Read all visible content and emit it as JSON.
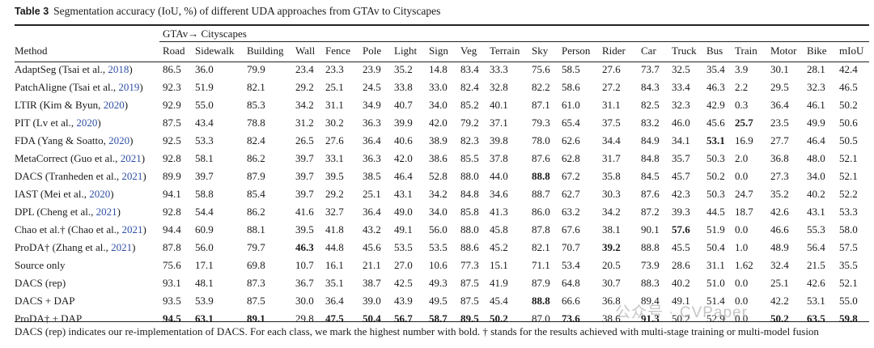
{
  "caption": {
    "label": "Table 3",
    "text": "Segmentation accuracy (IoU, %) of different UDA approaches from GTAv to Cityscapes"
  },
  "group_header": "GTAv→ Cityscapes",
  "method_header": "Method",
  "columns": [
    "Road",
    "Sidewalk",
    "Building",
    "Wall",
    "Fence",
    "Pole",
    "Light",
    "Sign",
    "Veg",
    "Terrain",
    "Sky",
    "Person",
    "Rider",
    "Car",
    "Truck",
    "Bus",
    "Train",
    "Motor",
    "Bike",
    "mIoU"
  ],
  "rows": [
    {
      "name": "AdaptSeg (",
      "cite_text": "Tsai et al., ",
      "cite_year": "2018",
      "tail": ")",
      "values": [
        "86.5",
        "36.0",
        "79.9",
        "23.4",
        "23.3",
        "23.9",
        "35.2",
        "14.8",
        "83.4",
        "33.3",
        "75.6",
        "58.5",
        "27.6",
        "73.7",
        "32.5",
        "35.4",
        "3.9",
        "30.1",
        "28.1",
        "42.4"
      ],
      "bold": []
    },
    {
      "name": "PatchAligne (",
      "cite_text": "Tsai et al., ",
      "cite_year": "2019",
      "tail": ")",
      "values": [
        "92.3",
        "51.9",
        "82.1",
        "29.2",
        "25.1",
        "24.5",
        "33.8",
        "33.0",
        "82.4",
        "32.8",
        "82.2",
        "58.6",
        "27.2",
        "84.3",
        "33.4",
        "46.3",
        "2.2",
        "29.5",
        "32.3",
        "46.5"
      ],
      "bold": []
    },
    {
      "name": "LTIR (",
      "cite_text": "Kim & Byun, ",
      "cite_year": "2020",
      "tail": ")",
      "values": [
        "92.9",
        "55.0",
        "85.3",
        "34.2",
        "31.1",
        "34.9",
        "40.7",
        "34.0",
        "85.2",
        "40.1",
        "87.1",
        "61.0",
        "31.1",
        "82.5",
        "32.3",
        "42.9",
        "0.3",
        "36.4",
        "46.1",
        "50.2"
      ],
      "bold": []
    },
    {
      "name": "PIT (",
      "cite_text": "Lv et al., ",
      "cite_year": "2020",
      "tail": ")",
      "values": [
        "87.5",
        "43.4",
        "78.8",
        "31.2",
        "30.2",
        "36.3",
        "39.9",
        "42.0",
        "79.2",
        "37.1",
        "79.3",
        "65.4",
        "37.5",
        "83.2",
        "46.0",
        "45.6",
        "25.7",
        "23.5",
        "49.9",
        "50.6"
      ],
      "bold": [
        16
      ]
    },
    {
      "name": "FDA (",
      "cite_text": "Yang & Soatto, ",
      "cite_year": "2020",
      "tail": ")",
      "values": [
        "92.5",
        "53.3",
        "82.4",
        "26.5",
        "27.6",
        "36.4",
        "40.6",
        "38.9",
        "82.3",
        "39.8",
        "78.0",
        "62.6",
        "34.4",
        "84.9",
        "34.1",
        "53.1",
        "16.9",
        "27.7",
        "46.4",
        "50.5"
      ],
      "bold": [
        15
      ]
    },
    {
      "name": "MetaCorrect (",
      "cite_text": "Guo et al., ",
      "cite_year": "2021",
      "tail": ")",
      "values": [
        "92.8",
        "58.1",
        "86.2",
        "39.7",
        "33.1",
        "36.3",
        "42.0",
        "38.6",
        "85.5",
        "37.8",
        "87.6",
        "62.8",
        "31.7",
        "84.8",
        "35.7",
        "50.3",
        "2.0",
        "36.8",
        "48.0",
        "52.1"
      ],
      "bold": []
    },
    {
      "name": "DACS (",
      "cite_text": "Tranheden et al., ",
      "cite_year": "2021",
      "tail": ")",
      "values": [
        "89.9",
        "39.7",
        "87.9",
        "39.7",
        "39.5",
        "38.5",
        "46.4",
        "52.8",
        "88.0",
        "44.0",
        "88.8",
        "67.2",
        "35.8",
        "84.5",
        "45.7",
        "50.2",
        "0.0",
        "27.3",
        "34.0",
        "52.1"
      ],
      "bold": [
        10
      ]
    },
    {
      "name": "IAST (",
      "cite_text": "Mei et al., ",
      "cite_year": "2020",
      "tail": ")",
      "values": [
        "94.1",
        "58.8",
        "85.4",
        "39.7",
        "29.2",
        "25.1",
        "43.1",
        "34.2",
        "84.8",
        "34.6",
        "88.7",
        "62.7",
        "30.3",
        "87.6",
        "42.3",
        "50.3",
        "24.7",
        "35.2",
        "40.2",
        "52.2"
      ],
      "bold": []
    },
    {
      "name": "DPL (",
      "cite_text": "Cheng et al., ",
      "cite_year": "2021",
      "tail": ")",
      "values": [
        "92.8",
        "54.4",
        "86.2",
        "41.6",
        "32.7",
        "36.4",
        "49.0",
        "34.0",
        "85.8",
        "41.3",
        "86.0",
        "63.2",
        "34.2",
        "87.2",
        "39.3",
        "44.5",
        "18.7",
        "42.6",
        "43.1",
        "53.3"
      ],
      "bold": []
    },
    {
      "name": "Chao et al.† (",
      "cite_text": "Chao et al., ",
      "cite_year": "2021",
      "tail": ")",
      "values": [
        "94.4",
        "60.9",
        "88.1",
        "39.5",
        "41.8",
        "43.2",
        "49.1",
        "56.0",
        "88.0",
        "45.8",
        "87.8",
        "67.6",
        "38.1",
        "90.1",
        "57.6",
        "51.9",
        "0.0",
        "46.6",
        "55.3",
        "58.0"
      ],
      "bold": [
        14
      ]
    },
    {
      "name": "ProDA† (",
      "cite_text": "Zhang et al., ",
      "cite_year": "2021",
      "tail": ")",
      "values": [
        "87.8",
        "56.0",
        "79.7",
        "46.3",
        "44.8",
        "45.6",
        "53.5",
        "53.5",
        "88.6",
        "45.2",
        "82.1",
        "70.7",
        "39.2",
        "88.8",
        "45.5",
        "50.4",
        "1.0",
        "48.9",
        "56.4",
        "57.5"
      ],
      "bold": [
        3,
        12
      ]
    },
    {
      "name": "Source only",
      "cite_text": "",
      "cite_year": "",
      "tail": "",
      "values": [
        "75.6",
        "17.1",
        "69.8",
        "10.7",
        "16.1",
        "21.1",
        "27.0",
        "10.6",
        "77.3",
        "15.1",
        "71.1",
        "53.4",
        "20.5",
        "73.9",
        "28.6",
        "31.1",
        "1.62",
        "32.4",
        "21.5",
        "35.5"
      ],
      "bold": []
    },
    {
      "name": "DACS (rep)",
      "cite_text": "",
      "cite_year": "",
      "tail": "",
      "values": [
        "93.1",
        "48.1",
        "87.3",
        "36.7",
        "35.1",
        "38.7",
        "42.5",
        "49.3",
        "87.5",
        "41.9",
        "87.9",
        "64.8",
        "30.7",
        "88.3",
        "40.2",
        "51.0",
        "0.0",
        "25.1",
        "42.6",
        "52.1"
      ],
      "bold": []
    },
    {
      "name": "DACS + DAP",
      "cite_text": "",
      "cite_year": "",
      "tail": "",
      "values": [
        "93.5",
        "53.9",
        "87.5",
        "30.0",
        "36.4",
        "39.0",
        "43.9",
        "49.5",
        "87.5",
        "45.4",
        "88.8",
        "66.6",
        "36.8",
        "89.4",
        "49.1",
        "51.4",
        "0.0",
        "42.2",
        "53.1",
        "55.0"
      ],
      "bold": [
        10
      ]
    },
    {
      "name": "ProDA† + DAP",
      "cite_text": "",
      "cite_year": "",
      "tail": "",
      "values": [
        "94.5",
        "63.1",
        "89.1",
        "29.8",
        "47.5",
        "50.4",
        "56.7",
        "58.7",
        "89.5",
        "50.2",
        "87.0",
        "73.6",
        "38.6",
        "91.3",
        "50.2",
        "52.9",
        "0.0",
        "50.2",
        "63.5",
        "59.8"
      ],
      "bold": [
        0,
        1,
        2,
        4,
        5,
        6,
        7,
        8,
        9,
        11,
        13,
        17,
        18,
        19
      ]
    }
  ],
  "footnote": "DACS (rep) indicates our re-implementation of DACS. For each class, we mark the highest number with bold. † stands for the results achieved with multi-stage training or multi-model fusion",
  "watermark": "公众号 · CVPaper"
}
